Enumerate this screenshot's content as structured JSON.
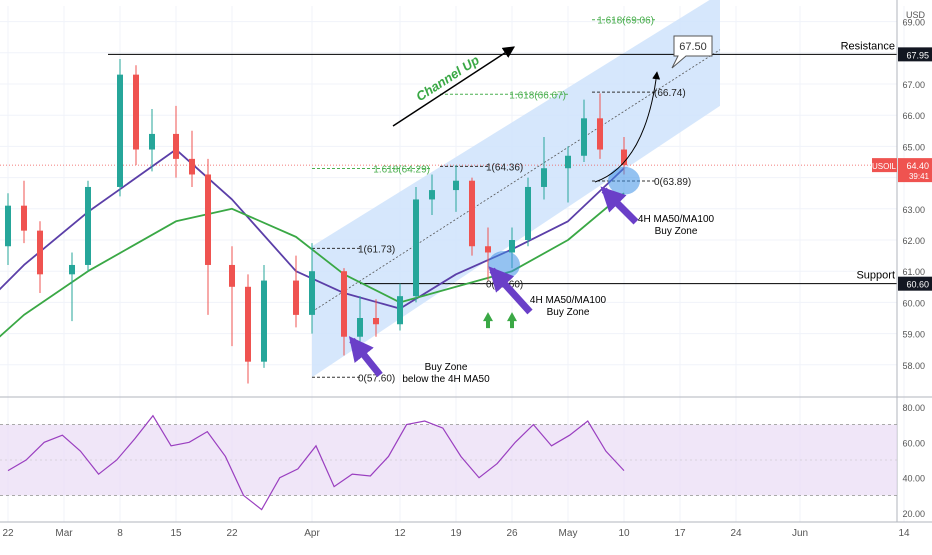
{
  "chart_data": {
    "type": "candlestick",
    "symbol": "USOIL",
    "currency": "USD",
    "price_axis": {
      "min": 57.0,
      "max": 69.5,
      "ticks": [
        58.0,
        59.0,
        60.0,
        61.0,
        62.0,
        63.0,
        64.0,
        65.0,
        66.0,
        67.0,
        68.0,
        69.0
      ]
    },
    "date_axis": {
      "labels": [
        "22",
        "Mar",
        "8",
        "15",
        "22",
        "Apr",
        "12",
        "19",
        "26",
        "May",
        "10",
        "17",
        "24",
        "Jun",
        "14"
      ]
    },
    "price_markers": [
      {
        "value": 67.95,
        "label": "67.95"
      },
      {
        "value": 64.4,
        "label": "USOIL · 64.40",
        "countdown": "39:41"
      },
      {
        "value": 60.6,
        "label": "60.60"
      }
    ],
    "levels": [
      {
        "name": "Resistance",
        "value": 67.95
      },
      {
        "name": "Support",
        "value": 60.6
      }
    ],
    "candles": [
      {
        "date": "2021-02-17",
        "open": 60.1,
        "high": 61.0,
        "low": 59.6,
        "close": 60.6
      },
      {
        "date": "2021-02-19",
        "open": 60.6,
        "high": 62.2,
        "low": 60.2,
        "close": 61.8
      },
      {
        "date": "2021-02-22",
        "open": 61.8,
        "high": 63.5,
        "low": 61.2,
        "close": 63.1
      },
      {
        "date": "2021-02-24",
        "open": 63.1,
        "high": 63.9,
        "low": 61.9,
        "close": 62.3
      },
      {
        "date": "2021-02-26",
        "open": 62.3,
        "high": 62.6,
        "low": 60.3,
        "close": 60.9
      },
      {
        "date": "2021-03-02",
        "open": 60.9,
        "high": 61.6,
        "low": 59.4,
        "close": 61.2
      },
      {
        "date": "2021-03-04",
        "open": 61.2,
        "high": 63.9,
        "low": 61.0,
        "close": 63.7
      },
      {
        "date": "2021-03-08",
        "open": 63.7,
        "high": 67.8,
        "low": 63.4,
        "close": 67.3
      },
      {
        "date": "2021-03-10",
        "open": 67.3,
        "high": 67.6,
        "low": 64.4,
        "close": 64.9
      },
      {
        "date": "2021-03-12",
        "open": 64.9,
        "high": 66.2,
        "low": 64.2,
        "close": 65.4
      },
      {
        "date": "2021-03-15",
        "open": 65.4,
        "high": 66.3,
        "low": 64.0,
        "close": 64.6
      },
      {
        "date": "2021-03-17",
        "open": 64.6,
        "high": 65.5,
        "low": 63.7,
        "close": 64.1
      },
      {
        "date": "2021-03-19",
        "open": 64.1,
        "high": 64.6,
        "low": 59.6,
        "close": 61.2
      },
      {
        "date": "2021-03-22",
        "open": 61.2,
        "high": 61.8,
        "low": 58.6,
        "close": 60.5
      },
      {
        "date": "2021-03-24",
        "open": 60.5,
        "high": 60.9,
        "low": 57.4,
        "close": 58.1
      },
      {
        "date": "2021-03-26",
        "open": 58.1,
        "high": 61.2,
        "low": 57.9,
        "close": 60.7
      },
      {
        "date": "2021-03-30",
        "open": 60.7,
        "high": 61.5,
        "low": 59.2,
        "close": 59.6
      },
      {
        "date": "2021-04-01",
        "open": 59.6,
        "high": 61.9,
        "low": 59.0,
        "close": 61.0
      },
      {
        "date": "2021-04-05",
        "open": 61.0,
        "high": 61.1,
        "low": 58.3,
        "close": 58.9
      },
      {
        "date": "2021-04-07",
        "open": 58.9,
        "high": 60.2,
        "low": 58.6,
        "close": 59.5
      },
      {
        "date": "2021-04-09",
        "open": 59.5,
        "high": 60.1,
        "low": 58.9,
        "close": 59.3
      },
      {
        "date": "2021-04-12",
        "open": 59.3,
        "high": 60.6,
        "low": 59.1,
        "close": 60.2
      },
      {
        "date": "2021-04-14",
        "open": 60.2,
        "high": 63.7,
        "low": 60.0,
        "close": 63.3
      },
      {
        "date": "2021-04-16",
        "open": 63.3,
        "high": 64.1,
        "low": 62.8,
        "close": 63.6
      },
      {
        "date": "2021-04-19",
        "open": 63.6,
        "high": 64.4,
        "low": 62.9,
        "close": 63.9
      },
      {
        "date": "2021-04-21",
        "open": 63.9,
        "high": 64.0,
        "low": 61.5,
        "close": 61.8
      },
      {
        "date": "2021-04-23",
        "open": 61.8,
        "high": 62.4,
        "low": 60.7,
        "close": 61.6
      },
      {
        "date": "2021-04-26",
        "open": 61.6,
        "high": 62.4,
        "low": 61.1,
        "close": 62.0
      },
      {
        "date": "2021-04-28",
        "open": 62.0,
        "high": 64.0,
        "low": 61.8,
        "close": 63.7
      },
      {
        "date": "2021-04-30",
        "open": 63.7,
        "high": 65.3,
        "low": 63.3,
        "close": 64.3
      },
      {
        "date": "2021-05-03",
        "open": 64.3,
        "high": 65.0,
        "low": 63.2,
        "close": 64.7
      },
      {
        "date": "2021-05-05",
        "open": 64.7,
        "high": 66.5,
        "low": 64.5,
        "close": 65.9
      },
      {
        "date": "2021-05-07",
        "open": 65.9,
        "high": 66.7,
        "low": 64.6,
        "close": 64.9
      },
      {
        "date": "2021-05-10",
        "open": 64.9,
        "high": 65.3,
        "low": 64.1,
        "close": 64.4
      }
    ],
    "moving_averages": [
      {
        "name": "4H MA50",
        "color": "#5b3fa8",
        "points": [
          [
            "2021-02-17",
            59.4
          ],
          [
            "2021-02-24",
            61.2
          ],
          [
            "2021-03-04",
            62.9
          ],
          [
            "2021-03-15",
            64.9
          ],
          [
            "2021-03-22",
            63.3
          ],
          [
            "2021-03-30",
            61.0
          ],
          [
            "2021-04-05",
            60.3
          ],
          [
            "2021-04-12",
            59.8
          ],
          [
            "2021-04-19",
            60.9
          ],
          [
            "2021-04-26",
            61.7
          ],
          [
            "2021-05-03",
            62.6
          ],
          [
            "2021-05-10",
            64.3
          ]
        ]
      },
      {
        "name": "4H MA100",
        "color": "#3aa845",
        "points": [
          [
            "2021-02-17",
            58.0
          ],
          [
            "2021-02-24",
            59.6
          ],
          [
            "2021-03-04",
            61.0
          ],
          [
            "2021-03-15",
            62.6
          ],
          [
            "2021-03-22",
            63.0
          ],
          [
            "2021-03-30",
            62.1
          ],
          [
            "2021-04-05",
            60.9
          ],
          [
            "2021-04-12",
            60.0
          ],
          [
            "2021-04-19",
            60.5
          ],
          [
            "2021-04-26",
            61.0
          ],
          [
            "2021-05-03",
            62.0
          ],
          [
            "2021-05-10",
            63.5
          ]
        ]
      }
    ],
    "channel": {
      "label": "Channel Up",
      "upper": [
        [
          "2021-04-01",
          61.8
        ],
        [
          "2021-05-22",
          69.9
        ]
      ],
      "lower": [
        [
          "2021-04-01",
          57.6
        ],
        [
          "2021-05-22",
          66.3
        ]
      ],
      "middle": [
        [
          "2021-04-01",
          59.7
        ],
        [
          "2021-05-22",
          68.1
        ]
      ]
    },
    "fib_levels": [
      {
        "label": "1(61.73)",
        "value": 61.73,
        "from": "2021-04-01",
        "to": "2021-04-07"
      },
      {
        "label": "0(57.60)",
        "value": 57.6,
        "from": "2021-04-01",
        "to": "2021-04-07"
      },
      {
        "label": "1.618(64.29)",
        "value": 64.29,
        "from": "2021-04-01",
        "to": "2021-04-16"
      },
      {
        "label": "1(64.36)",
        "value": 64.36,
        "from": "2021-04-17",
        "to": "2021-04-23"
      },
      {
        "label": "0(60.60)",
        "value": 60.6,
        "from": "2021-04-17",
        "to": "2021-04-23"
      },
      {
        "label": "1.618(66.67)",
        "value": 66.67,
        "from": "2021-04-17",
        "to": "2021-05-03"
      },
      {
        "label": "(66.74)",
        "value": 66.74,
        "from": "2021-05-06",
        "to": "2021-05-14"
      },
      {
        "label": "0(63.89)",
        "value": 63.89,
        "from": "2021-05-06",
        "to": "2021-05-14"
      },
      {
        "label": "1.618(69.06)",
        "value": 69.06,
        "from": "2021-05-06",
        "to": "2021-05-14"
      }
    ],
    "target_label": "67.50",
    "annotations": [
      {
        "text": "Buy Zone below the 4H MA50"
      },
      {
        "text": "4H MA50/MA100 Buy Zone"
      },
      {
        "text": "4H MA50/MA100 Buy Zone"
      }
    ],
    "buy_zones": [
      {
        "date": "2021-04-25",
        "value": 61.2
      },
      {
        "date": "2021-05-10",
        "value": 63.9
      }
    ],
    "rsi": {
      "ticks": [
        20.0,
        40.0,
        60.0,
        80.0
      ],
      "bands": [
        30,
        70
      ],
      "color": "#9a3fc0",
      "values": [
        44,
        50,
        60,
        64,
        55,
        42,
        50,
        62,
        75,
        58,
        60,
        66,
        52,
        30,
        22,
        40,
        45,
        58,
        35,
        42,
        41,
        52,
        70,
        72,
        68,
        52,
        40,
        48,
        60,
        70,
        58,
        64,
        72,
        55,
        44
      ]
    }
  }
}
